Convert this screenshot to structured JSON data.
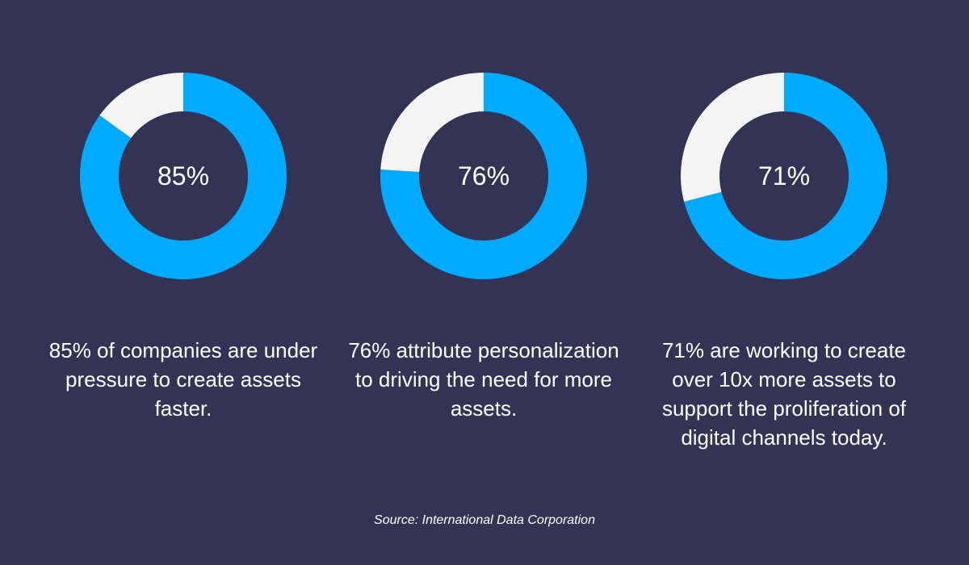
{
  "chart_data": [
    {
      "type": "pie",
      "variant": "donut",
      "values": [
        85,
        15
      ],
      "center_label": "85%",
      "caption": "85% of companies are under pressure to create assets faster."
    },
    {
      "type": "pie",
      "variant": "donut",
      "values": [
        76,
        24
      ],
      "center_label": "76%",
      "caption": "76% attribute personalization to driving the need for more assets."
    },
    {
      "type": "pie",
      "variant": "donut",
      "values": [
        71,
        29
      ],
      "center_label": "71%",
      "caption": "71% are working to create over 10x more assets to support the proliferation of digital channels today."
    }
  ],
  "colors": {
    "background": "#333356",
    "filled": "#00aaff",
    "remainder": "#f4f4f4",
    "text": "#ffffff"
  },
  "source": "Source: International Data Corporation"
}
